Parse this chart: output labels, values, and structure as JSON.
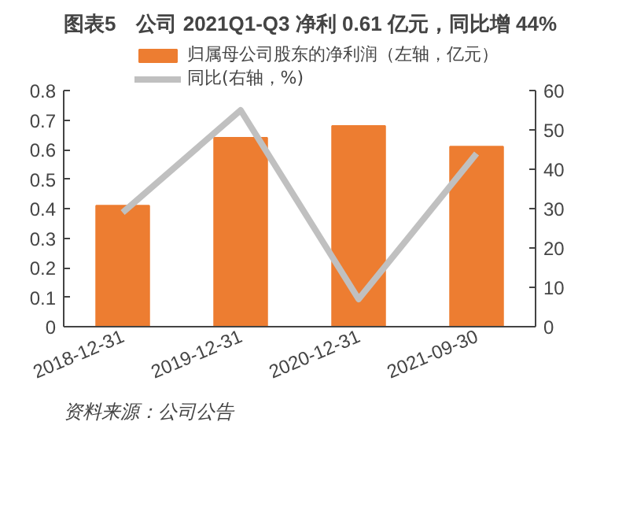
{
  "chart_data": {
    "type": "bar",
    "title": "图表5　公司 2021Q1-Q3 净利 0.61 亿元，同比增 44%",
    "categories": [
      "2018-12-31",
      "2019-12-31",
      "2020-12-31",
      "2021-09-30"
    ],
    "series": [
      {
        "name": "归属母公司股东的净利润（左轴，亿元）",
        "color": "#ed7d31",
        "values": [
          0.41,
          0.64,
          0.68,
          0.61
        ]
      },
      {
        "name": "同比(右轴，%)",
        "type": "line",
        "axis": "y2",
        "color": "#c0c0c0",
        "values": [
          29,
          55,
          7,
          44
        ]
      }
    ],
    "ylim": [
      0,
      0.8
    ],
    "yticks": [
      0,
      0.1,
      0.2,
      0.3,
      0.4,
      0.5,
      0.6,
      0.7,
      0.8
    ],
    "y2lim": [
      0,
      60
    ],
    "y2ticks": [
      0,
      10,
      20,
      30,
      40,
      50,
      60
    ],
    "legend": "top",
    "grid": false,
    "annotations": [
      "资料来源：公司公告"
    ]
  }
}
